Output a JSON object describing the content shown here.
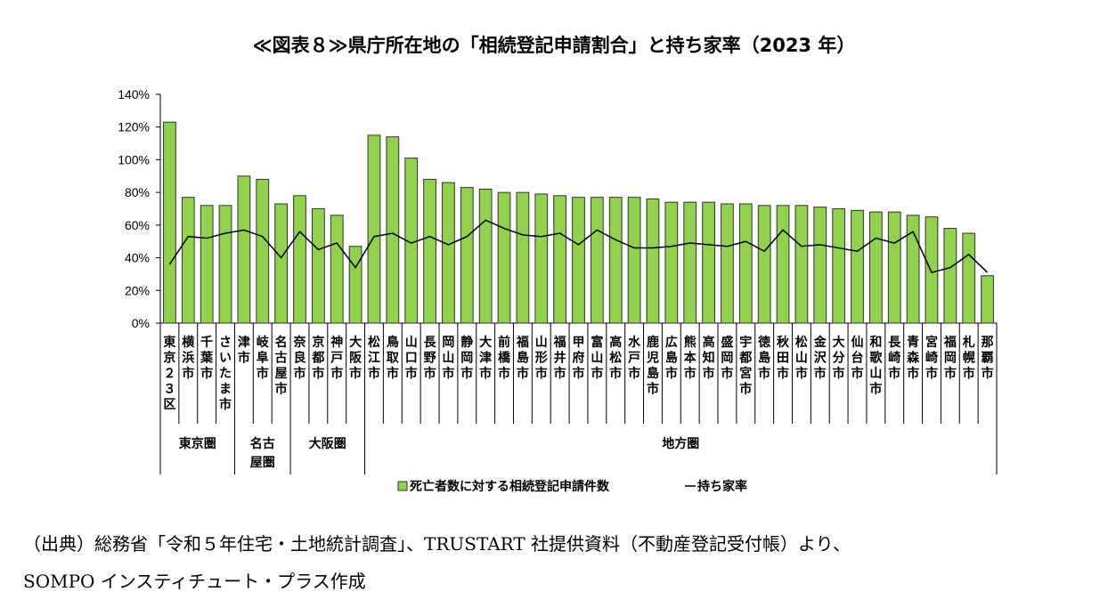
{
  "chart_data": {
    "type": "bar",
    "title": "≪図表８≫県庁所在地の「相続登記申請割合」と持ち家率（2023 年）",
    "ylim": [
      0,
      140
    ],
    "yticks": [
      "0%",
      "20%",
      "40%",
      "60%",
      "80%",
      "100%",
      "120%",
      "140%"
    ],
    "categories": [
      "東京23区",
      "横浜市",
      "千葉市",
      "さいたま市",
      "津市",
      "岐阜市",
      "名古屋市",
      "奈良市",
      "京都市",
      "神戸市",
      "大阪市",
      "松江市",
      "鳥取市",
      "山口市",
      "長野市",
      "岡山市",
      "静岡市",
      "大津市",
      "前橋市",
      "福島市",
      "山形市",
      "福井市",
      "甲府市",
      "富山市",
      "高松市",
      "水戸市",
      "鹿児島市",
      "広島市",
      "熊本市",
      "高知市",
      "盛岡市",
      "宇都宮市",
      "徳島市",
      "秋田市",
      "松山市",
      "金沢市",
      "大分市",
      "仙台市",
      "和歌山市",
      "長崎市",
      "青森市",
      "宮崎市",
      "福岡市",
      "札幌市",
      "那覇市"
    ],
    "category_labels": [
      "東京２３区",
      "横浜市",
      "千葉市",
      "さいたま市",
      "津市",
      "岐阜市",
      "名古屋市",
      "奈良市",
      "京都市",
      "神戸市",
      "大阪市",
      "松江市",
      "鳥取市",
      "山口市",
      "長野市",
      "岡山市",
      "静岡市",
      "大津市",
      "前橋市",
      "福島市",
      "山形市",
      "福井市",
      "甲府市",
      "富山市",
      "高松市",
      "水戸市",
      "鹿児島市",
      "広島市",
      "熊本市",
      "高知市",
      "盛岡市",
      "宇都宮市",
      "徳島市",
      "秋田市",
      "松山市",
      "金沢市",
      "大分市",
      "仙台市",
      "和歌山市",
      "長崎市",
      "青森市",
      "宮崎市",
      "福岡市",
      "札幌市",
      "那覇市"
    ],
    "groups": [
      {
        "label": "東京圏",
        "start": 0,
        "end": 4
      },
      {
        "label": "名古\n屋圏",
        "start": 4,
        "end": 7
      },
      {
        "label": "大阪圏",
        "start": 7,
        "end": 11
      },
      {
        "label": "地方圏",
        "start": 11,
        "end": 45
      }
    ],
    "series": [
      {
        "name": "死亡者数に対する相続登記申請件数",
        "kind": "bar",
        "color": "#92D050",
        "values": [
          123,
          77,
          72,
          72,
          90,
          88,
          73,
          78,
          70,
          66,
          47,
          115,
          114,
          101,
          88,
          86,
          83,
          82,
          80,
          80,
          79,
          78,
          77,
          77,
          77,
          77,
          76,
          74,
          74,
          74,
          73,
          73,
          72,
          72,
          72,
          71,
          70,
          69,
          68,
          68,
          66,
          65,
          58,
          55,
          29
        ]
      },
      {
        "name": "持ち家率",
        "kind": "line",
        "color": "#000000",
        "values": [
          36,
          53,
          52,
          55,
          57,
          53,
          40,
          56,
          45,
          49,
          34,
          53,
          55,
          49,
          53,
          48,
          53,
          63,
          58,
          54,
          53,
          55,
          48,
          57,
          51,
          46,
          46,
          47,
          49,
          48,
          47,
          50,
          44,
          57,
          47,
          48,
          46,
          44,
          52,
          49,
          56,
          31,
          34,
          42,
          31
        ]
      }
    ]
  },
  "source": {
    "line1": "（出典）総務省「令和５年住宅・土地統計調査」、TRUSTART 社提供資料（不動産登記受付帳）より、",
    "line2": "SOMPO インスティチュート・プラス作成"
  }
}
